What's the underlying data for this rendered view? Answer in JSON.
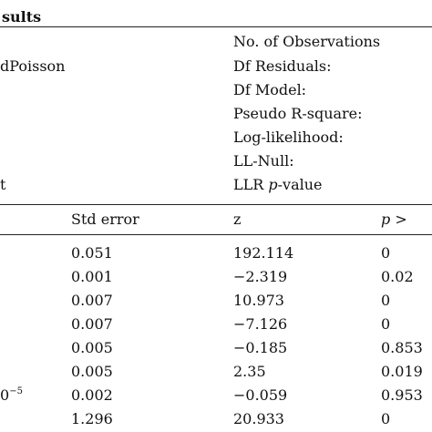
{
  "title_fragment": "sults",
  "model_fragment": "dPoisson",
  "left_fragment_bottom": "t",
  "stats_labels": [
    "No. of Observations",
    "Df Residuals:",
    "Df Model:",
    "Pseudo R-square:",
    "Log-likelihood:",
    "LL-Null:",
    "LLR"
  ],
  "llr_italic": "p",
  "llr_suffix": "-value",
  "columns": {
    "std_error": "Std error",
    "z": "z",
    "p_italic": "p",
    "p_suffix": " >"
  },
  "rows": [
    {
      "left": "",
      "std_error": "0.051",
      "z": "192.114",
      "p": "0"
    },
    {
      "left": "",
      "std_error": "0.001",
      "z": "−2.319",
      "p": "0.02"
    },
    {
      "left": "",
      "std_error": "0.007",
      "z": "10.973",
      "p": "0"
    },
    {
      "left": "",
      "std_error": "0.007",
      "z": "−7.126",
      "p": "0"
    },
    {
      "left": "",
      "std_error": "0.005",
      "z": "−0.185",
      "p": "0.853"
    },
    {
      "left": "",
      "std_error": "0.005",
      "z": "2.35",
      "p": "0.019"
    },
    {
      "left": "0",
      "left_sup": "−5",
      "std_error": "0.002",
      "z": "−0.059",
      "p": "0.953"
    },
    {
      "left": "",
      "std_error": "1.296",
      "z": "20.933",
      "p": "0"
    }
  ]
}
